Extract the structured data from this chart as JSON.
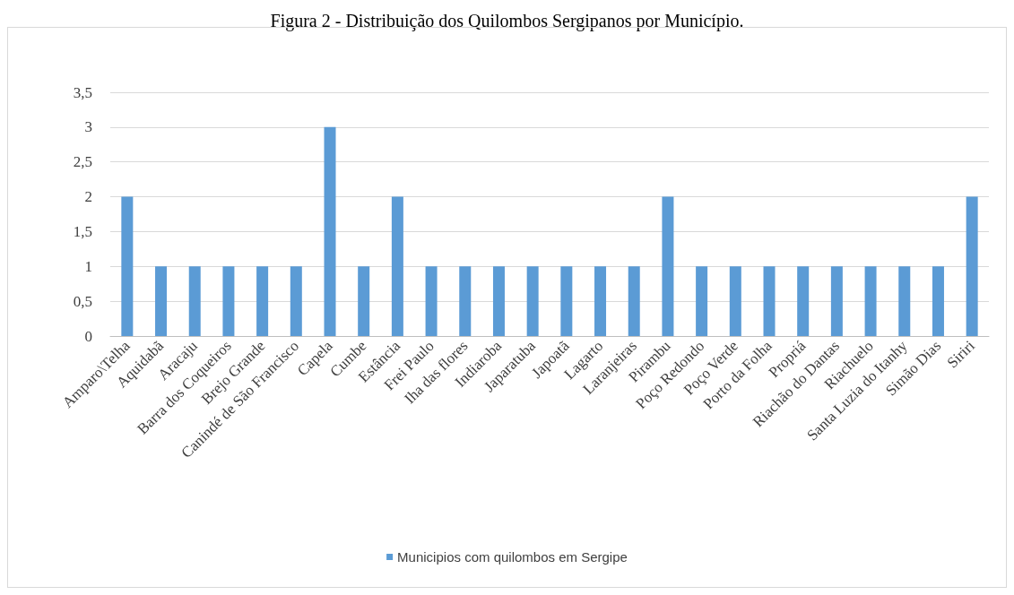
{
  "chart_data": {
    "type": "bar",
    "title": "Figura 2 - Distribuição dos Quilombos Sergipanos por Município.",
    "categories": [
      "Amparo\\Telha",
      "Aquidabã",
      "Aracaju",
      "Barra dos Coqueiros",
      "Brejo Grande",
      "Canindé de São Francisco",
      "Capela",
      "Cumbe",
      "Estância",
      "Frei Paulo",
      "Iha das flores",
      "Indiaroba",
      "Japaratuba",
      "Japoatã",
      "Lagarto",
      "Laranjeiras",
      "Pirambu",
      "Poço Redondo",
      "Poço Verde",
      "Porto da Folha",
      "Propriá",
      "Riachão do Dantas",
      "Riachuelo",
      "Santa Luzia do Itanhy",
      "Simão Dias",
      "Siriri"
    ],
    "series": [
      {
        "name": "Municipios com quilombos em Sergipe",
        "color": "#5b9bd5",
        "values": [
          2,
          1,
          1,
          1,
          1,
          1,
          3,
          1,
          2,
          1,
          1,
          1,
          1,
          1,
          1,
          1,
          2,
          1,
          1,
          1,
          1,
          1,
          1,
          1,
          1,
          2
        ]
      }
    ],
    "ylim": [
      0,
      3.5
    ],
    "yticks": [
      {
        "value": 0,
        "label": "0"
      },
      {
        "value": 0.5,
        "label": "0,5"
      },
      {
        "value": 1,
        "label": "1"
      },
      {
        "value": 1.5,
        "label": "1,5"
      },
      {
        "value": 2,
        "label": "2"
      },
      {
        "value": 2.5,
        "label": "2,5"
      },
      {
        "value": 3,
        "label": "3"
      },
      {
        "value": 3.5,
        "label": "3,5"
      }
    ],
    "grid": "y",
    "legend": "bottom"
  }
}
